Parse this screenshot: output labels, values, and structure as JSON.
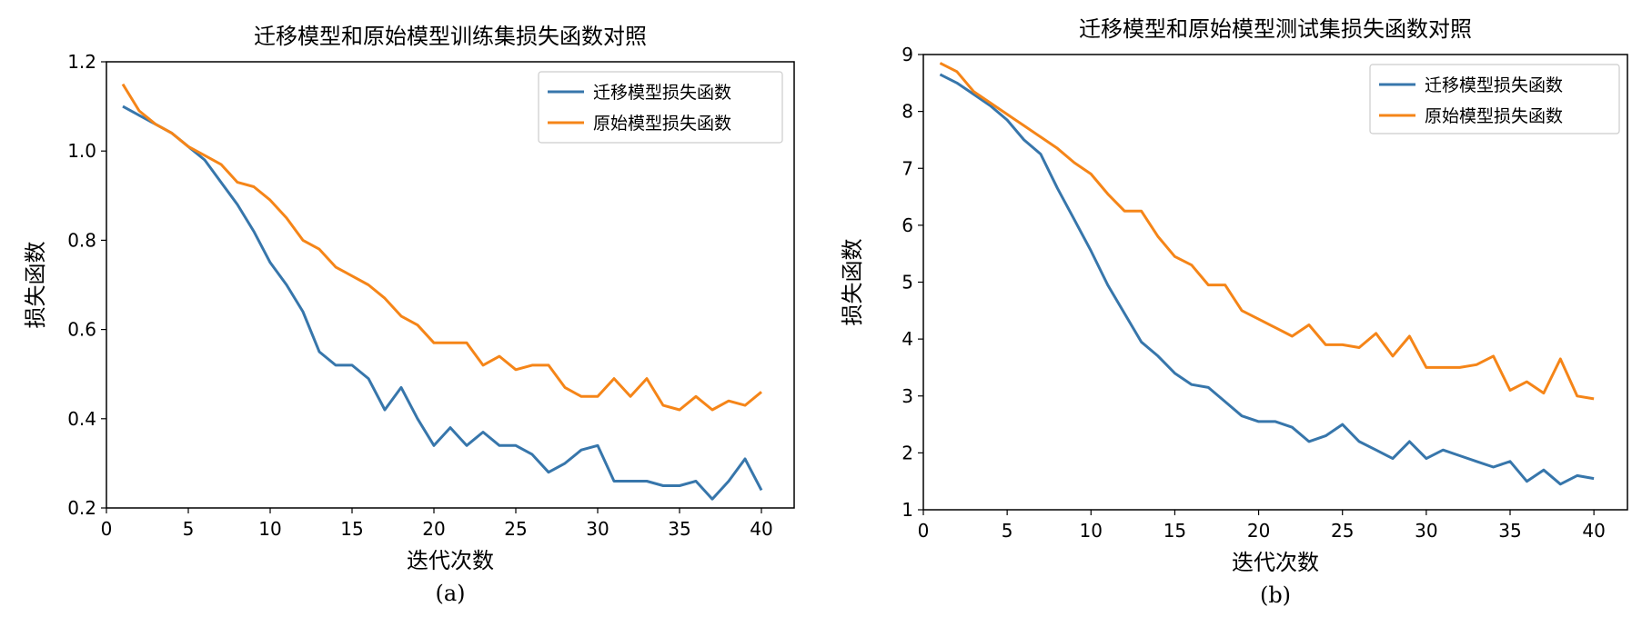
{
  "chart_data": [
    {
      "type": "line",
      "title": "迁移模型和原始模型训练集损失函数对照",
      "xlabel": "迭代次数",
      "ylabel": "损失函数",
      "caption": "(a)",
      "xlim": [
        0,
        42
      ],
      "ylim": [
        0.2,
        1.2
      ],
      "xticks": [
        0,
        5,
        10,
        15,
        20,
        25,
        30,
        35,
        40
      ],
      "yticks": [
        0.2,
        0.4,
        0.6,
        0.8,
        1.0,
        1.2
      ],
      "ytick_labels": [
        "0.2",
        "0.4",
        "0.6",
        "0.8",
        "1.0",
        "1.2"
      ],
      "legend_position": "top-right",
      "x": [
        1,
        2,
        3,
        4,
        5,
        6,
        7,
        8,
        9,
        10,
        11,
        12,
        13,
        14,
        15,
        16,
        17,
        18,
        19,
        20,
        21,
        22,
        23,
        24,
        25,
        26,
        27,
        28,
        29,
        30,
        31,
        32,
        33,
        34,
        35,
        36,
        37,
        38,
        39,
        40
      ],
      "series": [
        {
          "name": "迁移模型损失函数",
          "color": "#3776ab",
          "values": [
            1.1,
            1.08,
            1.06,
            1.04,
            1.01,
            0.98,
            0.93,
            0.88,
            0.82,
            0.75,
            0.7,
            0.64,
            0.55,
            0.52,
            0.52,
            0.49,
            0.42,
            0.47,
            0.4,
            0.34,
            0.38,
            0.34,
            0.37,
            0.34,
            0.34,
            0.32,
            0.28,
            0.3,
            0.33,
            0.34,
            0.26,
            0.26,
            0.26,
            0.25,
            0.25,
            0.26,
            0.22,
            0.26,
            0.31,
            0.24
          ]
        },
        {
          "name": "原始模型损失函数",
          "color": "#f58518",
          "values": [
            1.15,
            1.09,
            1.06,
            1.04,
            1.01,
            0.99,
            0.97,
            0.93,
            0.92,
            0.89,
            0.85,
            0.8,
            0.78,
            0.74,
            0.72,
            0.7,
            0.67,
            0.63,
            0.61,
            0.57,
            0.57,
            0.57,
            0.52,
            0.54,
            0.51,
            0.52,
            0.52,
            0.47,
            0.45,
            0.45,
            0.49,
            0.45,
            0.49,
            0.43,
            0.42,
            0.45,
            0.42,
            0.44,
            0.43,
            0.46
          ]
        }
      ]
    },
    {
      "type": "line",
      "title": "迁移模型和原始模型测试集损失函数对照",
      "xlabel": "迭代次数",
      "ylabel": "损失函数",
      "caption": "(b)",
      "xlim": [
        0,
        42
      ],
      "ylim": [
        1,
        9
      ],
      "xticks": [
        0,
        5,
        10,
        15,
        20,
        25,
        30,
        35,
        40
      ],
      "yticks": [
        1,
        2,
        3,
        4,
        5,
        6,
        7,
        8,
        9
      ],
      "ytick_labels": [
        "1",
        "2",
        "3",
        "4",
        "5",
        "6",
        "7",
        "8",
        "9"
      ],
      "legend_position": "top-right",
      "x": [
        1,
        2,
        3,
        4,
        5,
        6,
        7,
        8,
        9,
        10,
        11,
        12,
        13,
        14,
        15,
        16,
        17,
        18,
        19,
        20,
        21,
        22,
        23,
        24,
        25,
        26,
        27,
        28,
        29,
        30,
        31,
        32,
        33,
        34,
        35,
        36,
        37,
        38,
        39,
        40
      ],
      "series": [
        {
          "name": "迁移模型损失函数",
          "color": "#3776ab",
          "values": [
            8.65,
            8.5,
            8.3,
            8.1,
            7.85,
            7.5,
            7.25,
            6.65,
            6.1,
            5.55,
            4.95,
            4.45,
            3.95,
            3.7,
            3.4,
            3.2,
            3.15,
            2.9,
            2.65,
            2.55,
            2.55,
            2.45,
            2.2,
            2.3,
            2.5,
            2.2,
            2.05,
            1.9,
            2.2,
            1.9,
            2.05,
            1.95,
            1.85,
            1.75,
            1.85,
            1.5,
            1.7,
            1.45,
            1.6,
            1.55
          ]
        },
        {
          "name": "原始模型损失函数",
          "color": "#f58518",
          "values": [
            8.85,
            8.7,
            8.35,
            8.15,
            7.95,
            7.75,
            7.55,
            7.35,
            7.1,
            6.9,
            6.55,
            6.25,
            6.25,
            5.8,
            5.45,
            5.3,
            4.95,
            4.95,
            4.5,
            4.35,
            4.2,
            4.05,
            4.25,
            3.9,
            3.9,
            3.85,
            4.1,
            3.7,
            4.05,
            3.5,
            3.5,
            3.5,
            3.55,
            3.7,
            3.1,
            3.25,
            3.05,
            3.65,
            3.0,
            2.95
          ]
        }
      ]
    }
  ]
}
